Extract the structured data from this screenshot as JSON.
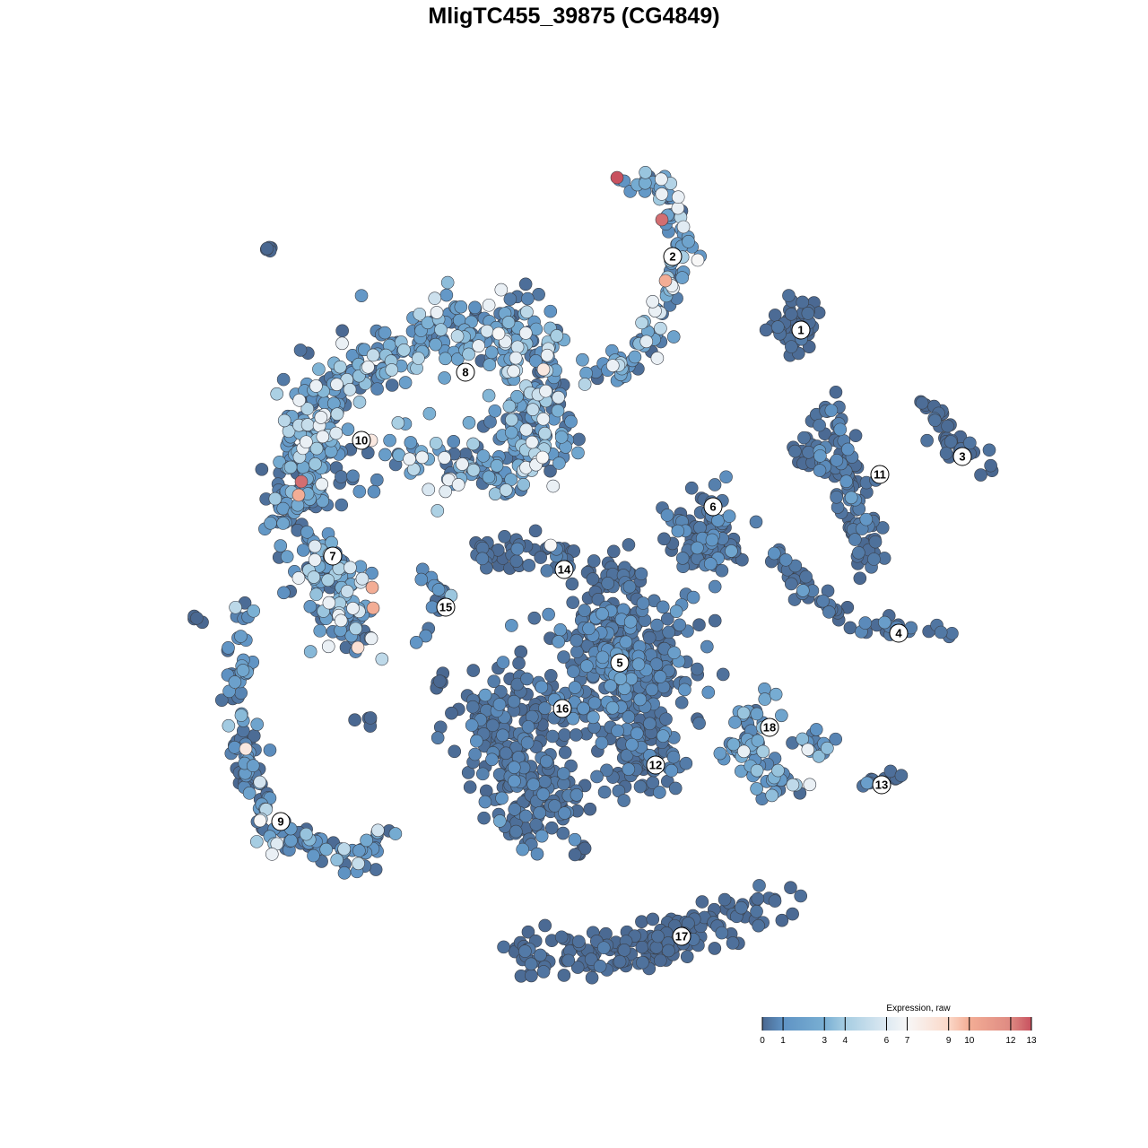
{
  "chart_data": {
    "type": "scatter",
    "title": "MligTC455_39875 (CG4849)",
    "xlabel": "",
    "ylabel": "",
    "grid": false,
    "axes_visible": false,
    "legend": {
      "title": "Expression, raw",
      "placement": "bottom-right",
      "ticks": [
        0,
        1,
        3,
        4,
        6,
        7,
        9,
        10,
        12,
        13
      ],
      "range": [
        0,
        13
      ],
      "colors": [
        {
          "value": 0,
          "color": "#4a6891"
        },
        {
          "value": 1,
          "color": "#5f93c4"
        },
        {
          "value": 3,
          "color": "#79afd3"
        },
        {
          "value": 4,
          "color": "#a6cde2"
        },
        {
          "value": 6,
          "color": "#dde9f2"
        },
        {
          "value": 7,
          "color": "#f7f7f7"
        },
        {
          "value": 9,
          "color": "#fbd8c8"
        },
        {
          "value": 10,
          "color": "#f3ad95"
        },
        {
          "value": 12,
          "color": "#de8a82"
        },
        {
          "value": 13,
          "color": "#c8515f"
        }
      ]
    },
    "clusters": [
      {
        "label": "1",
        "label_at": [
          25.3,
          27.2
        ],
        "path": [
          [
            24.5,
            28
          ]
        ],
        "spread": 2.5,
        "n": 50,
        "expr_mean": 0.1
      },
      {
        "label": "2",
        "label_at": [
          11,
          35.4
        ],
        "path": [
          [
            5,
            44.5
          ],
          [
            10.5,
            42.5
          ],
          [
            12.5,
            37
          ],
          [
            11,
            32
          ],
          [
            9,
            28
          ],
          [
            7,
            24
          ],
          [
            2.5,
            22.5
          ]
        ],
        "spread": 1.3,
        "n": 110,
        "expr_mean": 2.5
      },
      {
        "label": "3",
        "label_at": [
          43.3,
          13.1
        ],
        "path": [
          [
            39,
            19
          ],
          [
            41,
            17
          ],
          [
            42,
            14
          ],
          [
            47,
            12
          ]
        ],
        "spread": 1,
        "n": 35,
        "expr_mean": 0.1
      },
      {
        "label": "4",
        "label_at": [
          36.2,
          -6.6
        ],
        "path": [
          [
            22,
            3
          ],
          [
            26,
            -2
          ],
          [
            32,
            -6
          ],
          [
            42,
            -6.5
          ]
        ],
        "spread": 1,
        "n": 55,
        "expr_mean": 0.3
      },
      {
        "label": "5",
        "label_at": [
          5.1,
          -9.9
        ],
        "path": [
          [
            5,
            -10
          ]
        ],
        "spread": 7,
        "n": 350,
        "expr_mean": 0.5
      },
      {
        "label": "6",
        "label_at": [
          15.5,
          7.5
        ],
        "path": [
          [
            14,
            7
          ],
          [
            16,
            2
          ],
          [
            12,
            4
          ]
        ],
        "spread": 3,
        "n": 90,
        "expr_mean": 0.5
      },
      {
        "label": "7",
        "label_at": [
          -26.9,
          2
        ],
        "path": [
          [
            -29,
            3
          ],
          [
            -26,
            -2
          ],
          [
            -25,
            -7
          ]
        ],
        "spread": 3,
        "n": 120,
        "expr_mean": 2.2
      },
      {
        "label": "8",
        "label_at": [
          -12.1,
          22.5
        ],
        "path": [
          [
            -31,
            14
          ],
          [
            -28,
            20
          ],
          [
            -20,
            25
          ],
          [
            -12,
            28
          ],
          [
            -5,
            27
          ],
          [
            -4,
            20
          ],
          [
            -4,
            13
          ],
          [
            -10,
            12
          ],
          [
            -20,
            13
          ]
        ],
        "spread": 3.5,
        "n": 500,
        "expr_mean": 2.5
      },
      {
        "label": "9",
        "label_at": [
          -32.7,
          -27.6
        ],
        "path": [
          [
            -37,
            -4
          ],
          [
            -37,
            -18
          ],
          [
            -36,
            -24
          ],
          [
            -33,
            -29
          ],
          [
            -25,
            -32
          ],
          [
            -21,
            -29
          ]
        ],
        "spread": 1.5,
        "n": 150,
        "expr_mean": 1.3
      },
      {
        "label": "10",
        "label_at": [
          -23.7,
          14.9
        ],
        "path": [
          [
            -27,
            15
          ],
          [
            -30,
            10
          ],
          [
            -32,
            6
          ]
        ],
        "spread": 3,
        "n": 120,
        "expr_mean": 1.2
      },
      {
        "label": "11",
        "label_at": [
          34.1,
          11.1
        ],
        "path": [
          [
            28,
            19
          ],
          [
            30,
            13
          ],
          [
            32,
            6
          ],
          [
            33,
            1
          ]
        ],
        "spread": 1.8,
        "n": 90,
        "expr_mean": 0.3
      },
      {
        "label": "",
        "path": [
          [
            24,
            14
          ],
          [
            30,
            12
          ]
        ],
        "spread": 1.5,
        "n": 25,
        "expr_mean": 0.3
      },
      {
        "label": "12",
        "label_at": [
          9.1,
          -21.3
        ],
        "path": [
          [
            8,
            -21
          ]
        ],
        "spread": 3,
        "n": 60,
        "expr_mean": 0.3
      },
      {
        "label": "13",
        "label_at": [
          34.3,
          -23.5
        ],
        "path": [
          [
            32,
            -23.8
          ],
          [
            37,
            -22.2
          ]
        ],
        "spread": 0.6,
        "n": 12,
        "expr_mean": 0.4
      },
      {
        "label": "14",
        "label_at": [
          -1.1,
          0.5
        ],
        "path": [
          [
            -11,
            2.5
          ],
          [
            -2,
            2
          ],
          [
            6,
            -1
          ]
        ],
        "spread": 2,
        "n": 70,
        "expr_mean": 0.2
      },
      {
        "label": "15",
        "label_at": [
          -14.3,
          -3.7
        ],
        "path": [
          [
            -18,
            1.5
          ],
          [
            -14.5,
            -2
          ],
          [
            -16.5,
            -7
          ]
        ],
        "spread": 0.8,
        "n": 20,
        "expr_mean": 1
      },
      {
        "label": "16",
        "label_at": [
          -1.3,
          -15
        ],
        "path": [
          [
            -5,
            -15
          ],
          [
            -10,
            -18
          ],
          [
            -3,
            -24
          ],
          [
            -6,
            -28
          ]
        ],
        "spread": 4.5,
        "n": 250,
        "expr_mean": 0.3
      },
      {
        "label": "17",
        "label_at": [
          12,
          -40.4
        ],
        "path": [
          [
            -6.5,
            -42.5
          ],
          [
            6,
            -42
          ],
          [
            12,
            -40
          ],
          [
            24,
            -36
          ]
        ],
        "spread": 2.2,
        "n": 170,
        "expr_mean": 0.1
      },
      {
        "label": "18",
        "label_at": [
          21.8,
          -17.1
        ],
        "path": [
          [
            21,
            -14
          ],
          [
            19,
            -21
          ],
          [
            24,
            -24
          ]
        ],
        "spread": 2,
        "n": 70,
        "expr_mean": 1.8
      },
      {
        "label": "",
        "path": [
          [
            27,
            -19
          ]
        ],
        "spread": 1.5,
        "n": 15,
        "expr_mean": 1.8
      },
      {
        "label": "",
        "path": [
          [
            -34.5,
            36.5
          ],
          [
            -34,
            36
          ]
        ],
        "spread": 0.3,
        "n": 6,
        "expr_mean": 0
      },
      {
        "label": "",
        "path": [
          [
            -42,
            -5
          ]
        ],
        "spread": 0.4,
        "n": 5,
        "expr_mean": 0
      },
      {
        "label": "",
        "path": [
          [
            -23,
            -16.5
          ]
        ],
        "spread": 0.5,
        "n": 5,
        "expr_mean": 0
      },
      {
        "label": "",
        "path": [
          [
            -15,
            -12
          ]
        ],
        "spread": 0.8,
        "n": 6,
        "expr_mean": 0
      },
      {
        "label": "",
        "path": [
          [
            0.5,
            -31
          ]
        ],
        "spread": 0.8,
        "n": 4,
        "expr_mean": 0
      }
    ],
    "high_points": [
      [
        4.8,
        44.2,
        13
      ],
      [
        9.8,
        39.5,
        12.5
      ],
      [
        10.2,
        32.7,
        10
      ],
      [
        -30.4,
        10.3,
        12.5
      ],
      [
        -30.7,
        8.8,
        10
      ],
      [
        -22.5,
        -1.5,
        10
      ],
      [
        -22.4,
        -3.8,
        10
      ],
      [
        -22.6,
        14.9,
        8
      ],
      [
        -24.1,
        -8.2,
        8.5
      ],
      [
        -3.4,
        22.8,
        8
      ],
      [
        -36.6,
        -19.5,
        8
      ],
      [
        -8.4,
        26.8,
        7
      ],
      [
        -3.5,
        13,
        7
      ],
      [
        -2.6,
        3.2,
        7
      ],
      [
        -35.0,
        -27.5,
        7
      ],
      [
        13.8,
        35,
        7
      ]
    ]
  }
}
